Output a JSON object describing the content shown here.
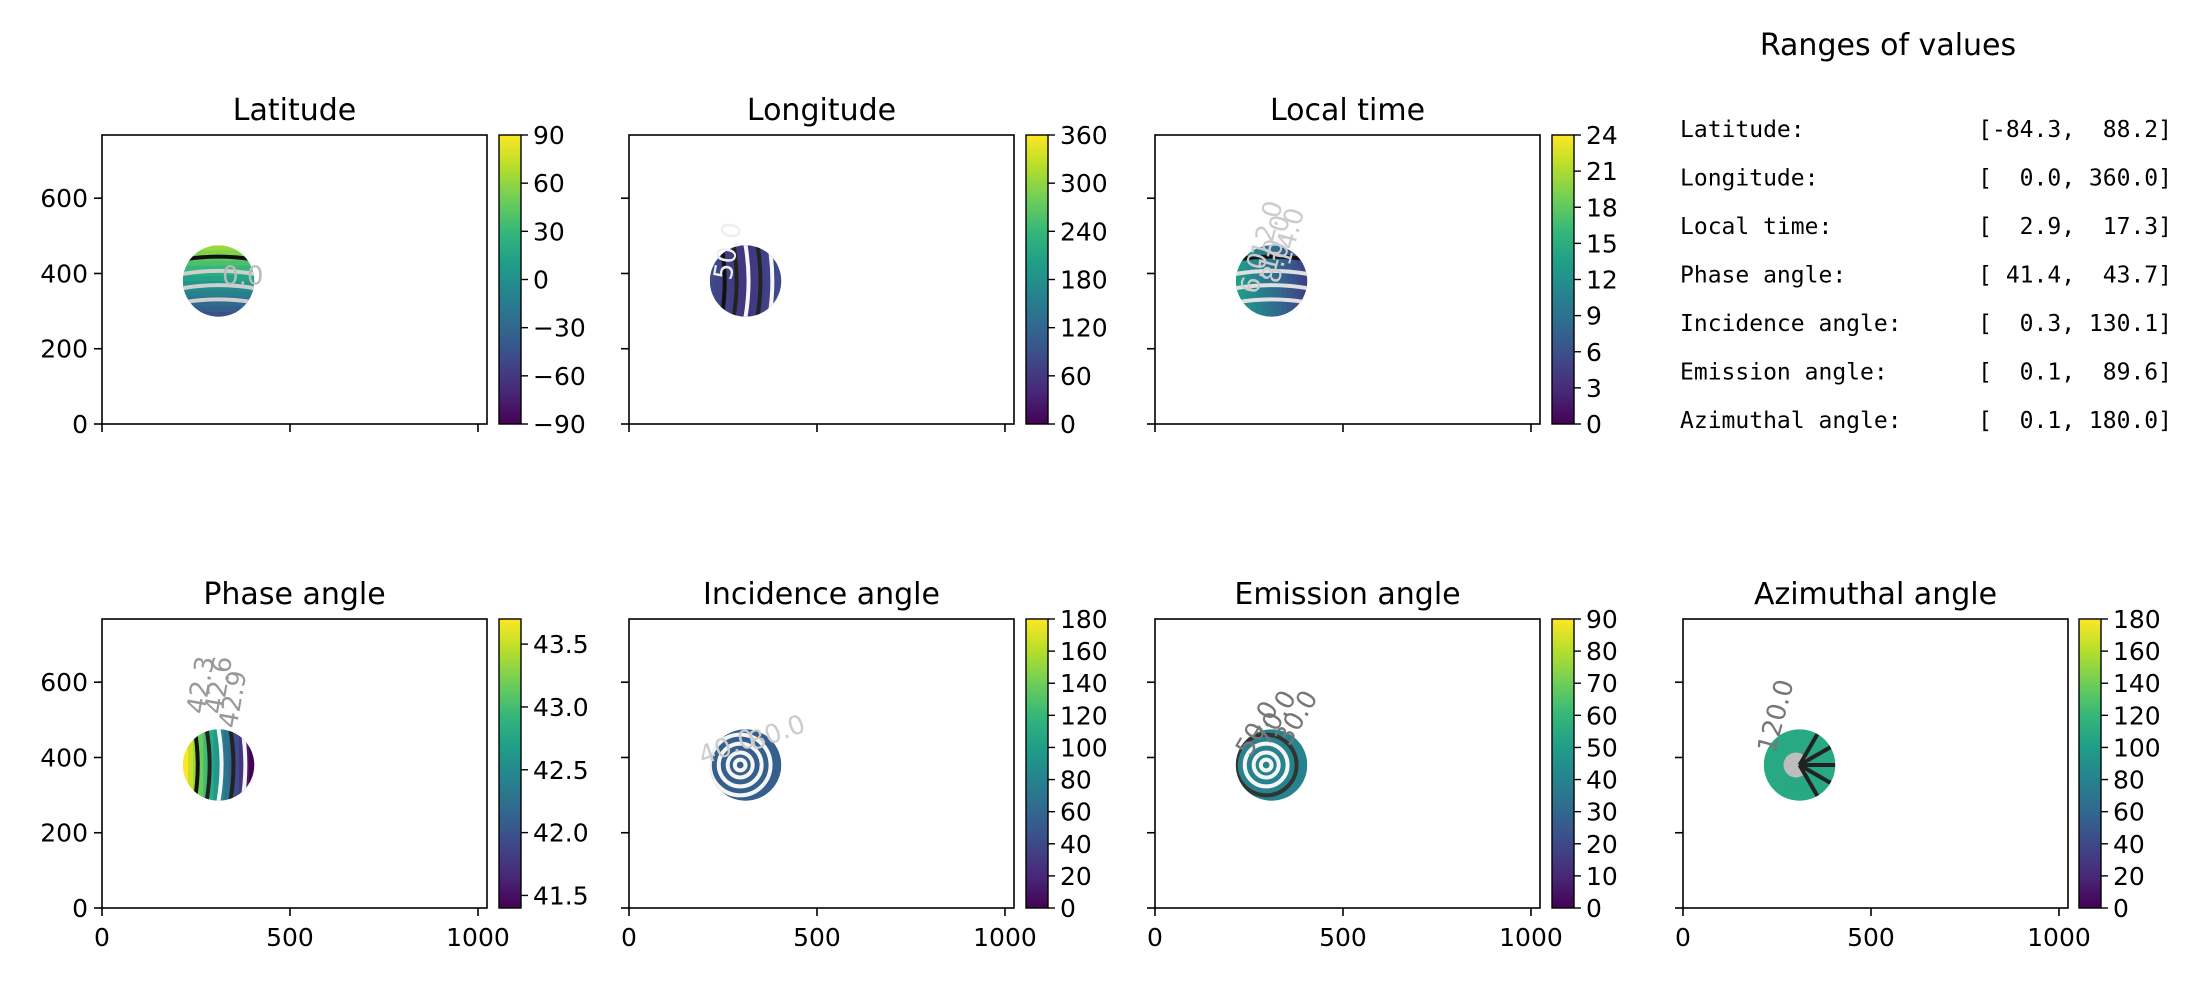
{
  "chart_data": [
    {
      "type": "heatmap",
      "title": "Latitude",
      "colorbar": {
        "ticks": [
          -90,
          -60,
          -30,
          0,
          30,
          60,
          90
        ],
        "labels": [
          "−90",
          "−60",
          "−30",
          "0",
          "30",
          "60",
          "90"
        ],
        "range": [
          -90,
          90
        ]
      },
      "ylabel": "",
      "y_ticks": [
        "0",
        "200",
        "400",
        "600"
      ],
      "x_ticks": [
        "",
        "",
        ""
      ],
      "contour_labels": [
        "0.0"
      ],
      "disk": {
        "center": [
          310,
          380
        ],
        "radius": 95
      }
    },
    {
      "type": "heatmap",
      "title": "Longitude",
      "colorbar": {
        "ticks": [
          0,
          60,
          120,
          180,
          240,
          300,
          360
        ],
        "labels": [
          "0",
          "60",
          "120",
          "180",
          "240",
          "300",
          "360"
        ],
        "range": [
          0,
          360
        ]
      },
      "contour_labels": [
        "50.0"
      ],
      "disk": {
        "center": [
          310,
          380
        ],
        "radius": 95
      }
    },
    {
      "type": "heatmap",
      "title": "Local time",
      "colorbar": {
        "ticks": [
          0,
          3,
          6,
          9,
          12,
          15,
          18,
          21,
          24
        ],
        "labels": [
          "0",
          "3",
          "6",
          "9",
          "12",
          "15",
          "18",
          "21",
          "24"
        ],
        "range": [
          0,
          24
        ]
      },
      "contour_labels": [
        "12.0",
        "10.0",
        "8.0",
        "6.0",
        "14.0"
      ],
      "disk": {
        "center": [
          310,
          380
        ],
        "radius": 95
      }
    },
    {
      "type": "heatmap",
      "title": "Phase angle",
      "colorbar": {
        "ticks": [
          41.5,
          42.0,
          42.5,
          43.0,
          43.5
        ],
        "labels": [
          "41.5",
          "42.0",
          "42.5",
          "43.0",
          "43.5"
        ],
        "range": [
          41.4,
          43.7
        ]
      },
      "y_ticks": [
        "0",
        "200",
        "400",
        "600"
      ],
      "x_ticks": [
        "0",
        "500",
        "1000"
      ],
      "contour_labels": [
        "42.9",
        "42.6",
        "42.3"
      ],
      "disk": {
        "center": [
          310,
          380
        ],
        "radius": 95
      }
    },
    {
      "type": "heatmap",
      "title": "Incidence angle",
      "colorbar": {
        "ticks": [
          0,
          20,
          40,
          60,
          80,
          100,
          120,
          140,
          160,
          180
        ],
        "labels": [
          "0",
          "20",
          "40",
          "60",
          "80",
          "100",
          "120",
          "140",
          "160",
          "180"
        ],
        "range": [
          0,
          180
        ]
      },
      "x_ticks": [
        "0",
        "500",
        "1000"
      ],
      "contour_labels": [
        "40.0",
        "80.0"
      ],
      "disk": {
        "center": [
          310,
          380
        ],
        "radius": 95
      }
    },
    {
      "type": "heatmap",
      "title": "Emission angle",
      "colorbar": {
        "ticks": [
          0,
          10,
          20,
          30,
          40,
          50,
          60,
          70,
          80,
          90
        ],
        "labels": [
          "0",
          "10",
          "20",
          "30",
          "40",
          "50",
          "60",
          "70",
          "80",
          "90"
        ],
        "range": [
          0,
          90
        ]
      },
      "x_ticks": [
        "0",
        "500",
        "1000"
      ],
      "contour_labels": [
        "50.0",
        "30.0",
        "70.0"
      ],
      "disk": {
        "center": [
          310,
          380
        ],
        "radius": 95
      }
    },
    {
      "type": "heatmap",
      "title": "Azimuthal angle",
      "colorbar": {
        "ticks": [
          0,
          20,
          40,
          60,
          80,
          100,
          120,
          140,
          160,
          180
        ],
        "labels": [
          "0",
          "20",
          "40",
          "60",
          "80",
          "100",
          "120",
          "140",
          "160",
          "180"
        ],
        "range": [
          0,
          180
        ]
      },
      "x_ticks": [
        "0",
        "500",
        "1000"
      ],
      "contour_labels": [
        "120.0"
      ],
      "disk": {
        "center": [
          310,
          380
        ],
        "radius": 95
      }
    },
    {
      "type": "table",
      "title": "Ranges of values",
      "rows": [
        {
          "label": "Latitude:",
          "value": "[-84.3,  88.2]"
        },
        {
          "label": "Longitude:",
          "value": "[  0.0, 360.0]"
        },
        {
          "label": "Local time:",
          "value": "[  2.9,  17.3]"
        },
        {
          "label": "Phase angle:",
          "value": "[ 41.4,  43.7]"
        },
        {
          "label": "Incidence angle:",
          "value": "[  0.3, 130.1]"
        },
        {
          "label": "Emission angle:",
          "value": "[  0.1,  89.6]"
        },
        {
          "label": "Azimuthal angle:",
          "value": "[  0.1, 180.0]"
        }
      ]
    }
  ],
  "axes": {
    "xlim": [
      0,
      1024
    ],
    "ylim": [
      0,
      768
    ],
    "x_tick_values": [
      0,
      500,
      1000
    ],
    "y_tick_values": [
      0,
      200,
      400,
      600
    ]
  },
  "colormap": "viridis"
}
